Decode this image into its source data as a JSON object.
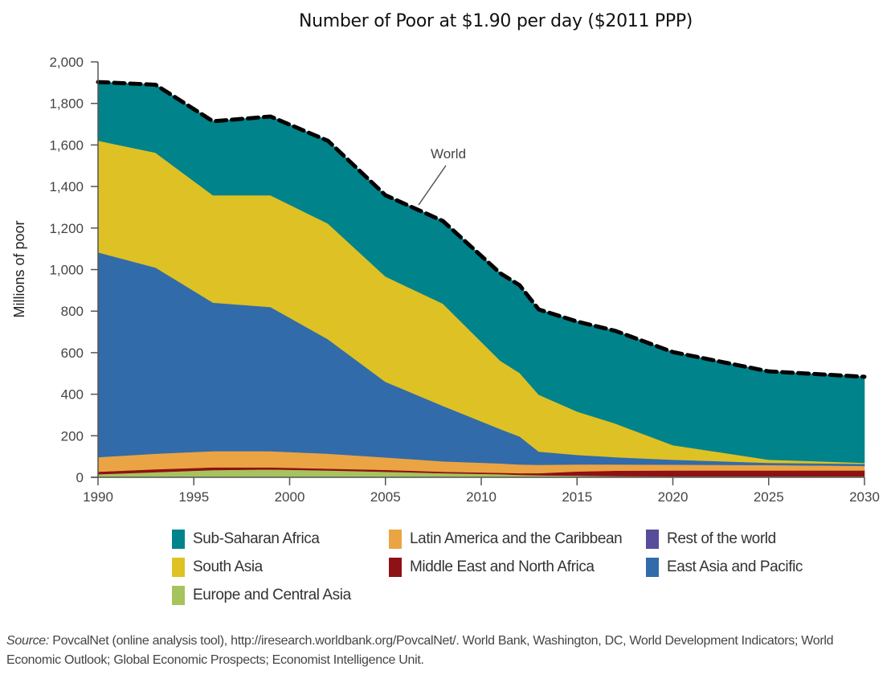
{
  "chart_data": {
    "type": "area",
    "stacked": true,
    "title": "Number of Poor at $1.90 per day ($2011 PPP)",
    "xlabel": "",
    "ylabel": "Millions of poor",
    "xlim": [
      1990,
      2030
    ],
    "ylim": [
      0,
      2000
    ],
    "x": [
      1990,
      1993,
      1996,
      1999,
      2002,
      2005,
      2008,
      2011,
      2012,
      2013,
      2015,
      2017,
      2020,
      2025,
      2030
    ],
    "xticks": [
      1990,
      1995,
      2000,
      2005,
      2010,
      2015,
      2020,
      2025,
      2030
    ],
    "xtick_labels": [
      "1990",
      "1995",
      "2000",
      "2005",
      "2010",
      "2015",
      "2020",
      "2025",
      "2030"
    ],
    "yticks": [
      0,
      200,
      400,
      600,
      800,
      1000,
      1200,
      1400,
      1600,
      1800,
      2000
    ],
    "ytick_labels": [
      "0",
      "200",
      "400",
      "600",
      "800",
      "1,000",
      "1,200",
      "1,400",
      "1,600",
      "1,800",
      "2,000"
    ],
    "grid": false,
    "legend_position": "bottom",
    "series": [
      {
        "name": "Rest of the world",
        "color": "#574d98",
        "values": [
          3,
          3,
          3,
          3,
          3,
          3,
          3,
          3,
          3,
          3,
          3,
          3,
          3,
          3,
          3
        ]
      },
      {
        "name": "Europe and Central Asia",
        "color": "#a6c35d",
        "values": [
          12,
          22,
          32,
          35,
          30,
          24,
          17,
          12,
          9,
          7,
          5,
          3,
          2,
          2,
          2
        ]
      },
      {
        "name": "Middle East and North Africa",
        "color": "#8e1115",
        "values": [
          12,
          14,
          13,
          10,
          9,
          9,
          7,
          7,
          8,
          10,
          20,
          26,
          28,
          28,
          28
        ]
      },
      {
        "name": "Latin America and the Caribbean",
        "color": "#eba443",
        "values": [
          70,
          75,
          78,
          78,
          72,
          60,
          50,
          45,
          42,
          40,
          34,
          30,
          28,
          26,
          22
        ]
      },
      {
        "name": "East Asia and Pacific",
        "color": "#326ba9",
        "values": [
          986,
          896,
          715,
          694,
          551,
          364,
          267,
          165,
          135,
          64,
          46,
          35,
          24,
          11,
          10
        ]
      },
      {
        "name": "South Asia",
        "color": "#dec124",
        "values": [
          538,
          553,
          517,
          538,
          557,
          507,
          492,
          329,
          306,
          274,
          209,
          162,
          70,
          15,
          5
        ]
      },
      {
        "name": "Sub-Saharan Africa",
        "color": "#00838a",
        "values": [
          282,
          327,
          356,
          379,
          398,
          391,
          398,
          421,
          422,
          410,
          433,
          446,
          448,
          425,
          414
        ]
      }
    ],
    "world_total": {
      "name": "World",
      "style": "dashed",
      "values": [
        1903,
        1890,
        1714,
        1737,
        1620,
        1358,
        1234,
        982,
        925,
        808,
        750,
        705,
        603,
        510,
        484
      ]
    },
    "annotations": [
      {
        "text": "World",
        "target": "world_total"
      }
    ]
  },
  "legend": {
    "items": [
      {
        "label": "Sub-Saharan Africa",
        "color": "#00838a"
      },
      {
        "label": "Latin America and the Caribbean",
        "color": "#eba443"
      },
      {
        "label": "Rest of the world",
        "color": "#574d98"
      },
      {
        "label": "South Asia",
        "color": "#dec124"
      },
      {
        "label": "Middle East and North Africa",
        "color": "#8e1115"
      },
      {
        "label": "East Asia and Pacific",
        "color": "#326ba9"
      },
      {
        "label": "Europe and Central Asia",
        "color": "#a6c35d"
      }
    ]
  },
  "source": {
    "prefix": "Source:",
    "text": " PovcalNet (online analysis tool), http://iresearch.worldbank.org/PovcalNet/. World Bank, Washington, DC, World Development Indicators; World Economic Outlook; Global Economic Prospects; Economist Intelligence Unit."
  }
}
